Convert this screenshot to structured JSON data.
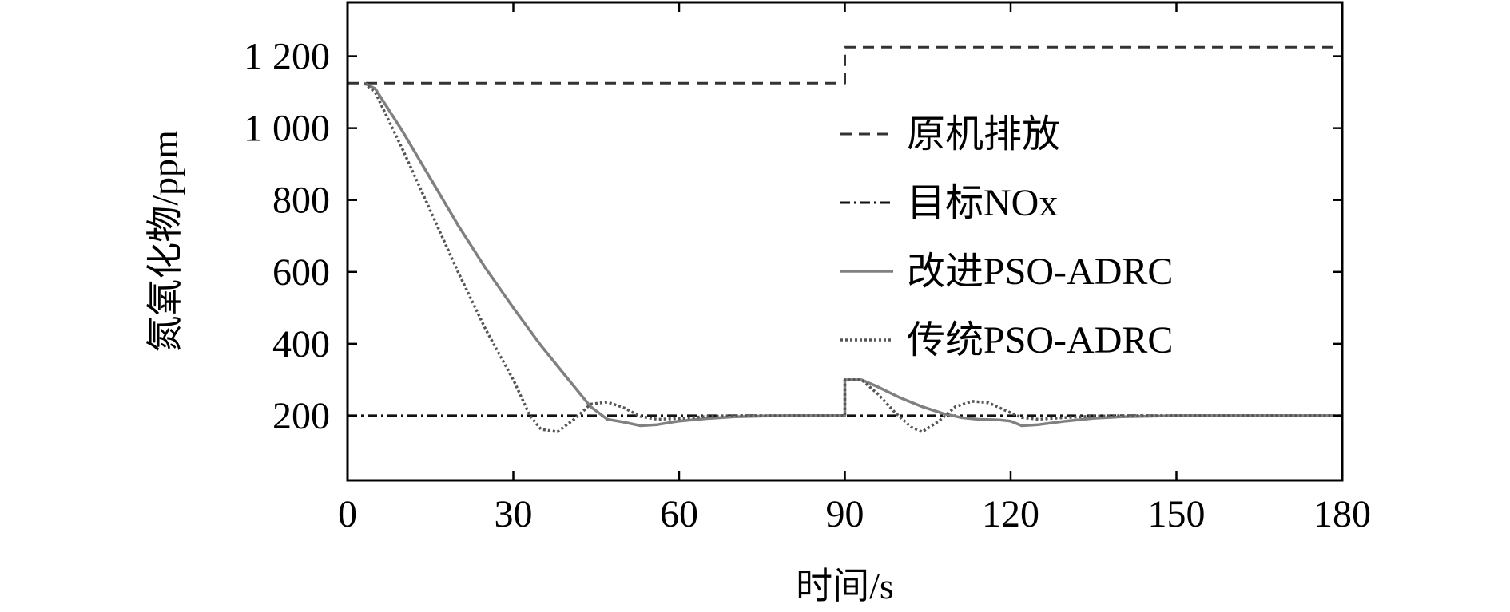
{
  "chart_data": {
    "type": "line",
    "xlabel": "时间/s",
    "ylabel": "氮氧化物/ppm",
    "xlim": [
      0,
      180
    ],
    "ylim": [
      20,
      1350
    ],
    "xticks": [
      0,
      30,
      60,
      90,
      120,
      150,
      180
    ],
    "xtick_labels": [
      "0",
      "30",
      "60",
      "90",
      "120",
      "150",
      "180"
    ],
    "yticks": [
      200,
      400,
      600,
      800,
      1000,
      1200
    ],
    "ytick_labels": [
      "200",
      "400",
      "600",
      "800",
      "1 000",
      "1 200"
    ],
    "grid": false,
    "legend_position": "center-right",
    "series": [
      {
        "name": "原机排放",
        "style": "dashed",
        "color": "#333333",
        "points": [
          [
            0,
            1125
          ],
          [
            90,
            1125
          ],
          [
            90,
            1225
          ],
          [
            180,
            1225
          ]
        ]
      },
      {
        "name": "目标NOx",
        "style": "dashdot",
        "color": "#111111",
        "points": [
          [
            0,
            200
          ],
          [
            180,
            200
          ]
        ]
      },
      {
        "name": "改进PSO-ADRC",
        "style": "solid",
        "color": "#808080",
        "points": [
          [
            3,
            1125
          ],
          [
            5,
            1110
          ],
          [
            10,
            990
          ],
          [
            15,
            860
          ],
          [
            20,
            730
          ],
          [
            25,
            610
          ],
          [
            30,
            500
          ],
          [
            35,
            395
          ],
          [
            40,
            300
          ],
          [
            44,
            225
          ],
          [
            47,
            190
          ],
          [
            50,
            182
          ],
          [
            53,
            172
          ],
          [
            56,
            175
          ],
          [
            60,
            185
          ],
          [
            65,
            192
          ],
          [
            70,
            197
          ],
          [
            75,
            199
          ],
          [
            80,
            200
          ],
          [
            90,
            200
          ],
          [
            90,
            300
          ],
          [
            93,
            300
          ],
          [
            96,
            280
          ],
          [
            100,
            250
          ],
          [
            104,
            225
          ],
          [
            108,
            205
          ],
          [
            111,
            195
          ],
          [
            114,
            190
          ],
          [
            118,
            188
          ],
          [
            120,
            185
          ],
          [
            122,
            172
          ],
          [
            125,
            175
          ],
          [
            130,
            185
          ],
          [
            135,
            193
          ],
          [
            140,
            197
          ],
          [
            150,
            200
          ],
          [
            180,
            200
          ]
        ]
      },
      {
        "name": "传统PSO-ADRC",
        "style": "dotted",
        "color": "#555555",
        "points": [
          [
            3,
            1125
          ],
          [
            5,
            1100
          ],
          [
            10,
            940
          ],
          [
            15,
            770
          ],
          [
            20,
            600
          ],
          [
            25,
            440
          ],
          [
            30,
            300
          ],
          [
            33,
            200
          ],
          [
            35,
            162
          ],
          [
            38,
            155
          ],
          [
            41,
            190
          ],
          [
            44,
            232
          ],
          [
            47,
            238
          ],
          [
            50,
            222
          ],
          [
            53,
            198
          ],
          [
            56,
            190
          ],
          [
            60,
            192
          ],
          [
            65,
            198
          ],
          [
            70,
            200
          ],
          [
            90,
            200
          ],
          [
            90,
            300
          ],
          [
            93,
            300
          ],
          [
            96,
            260
          ],
          [
            99,
            210
          ],
          [
            102,
            168
          ],
          [
            104,
            155
          ],
          [
            107,
            185
          ],
          [
            110,
            225
          ],
          [
            113,
            240
          ],
          [
            116,
            236
          ],
          [
            119,
            215
          ],
          [
            122,
            195
          ],
          [
            125,
            190
          ],
          [
            130,
            195
          ],
          [
            135,
            199
          ],
          [
            140,
            200
          ],
          [
            180,
            200
          ]
        ]
      }
    ]
  }
}
